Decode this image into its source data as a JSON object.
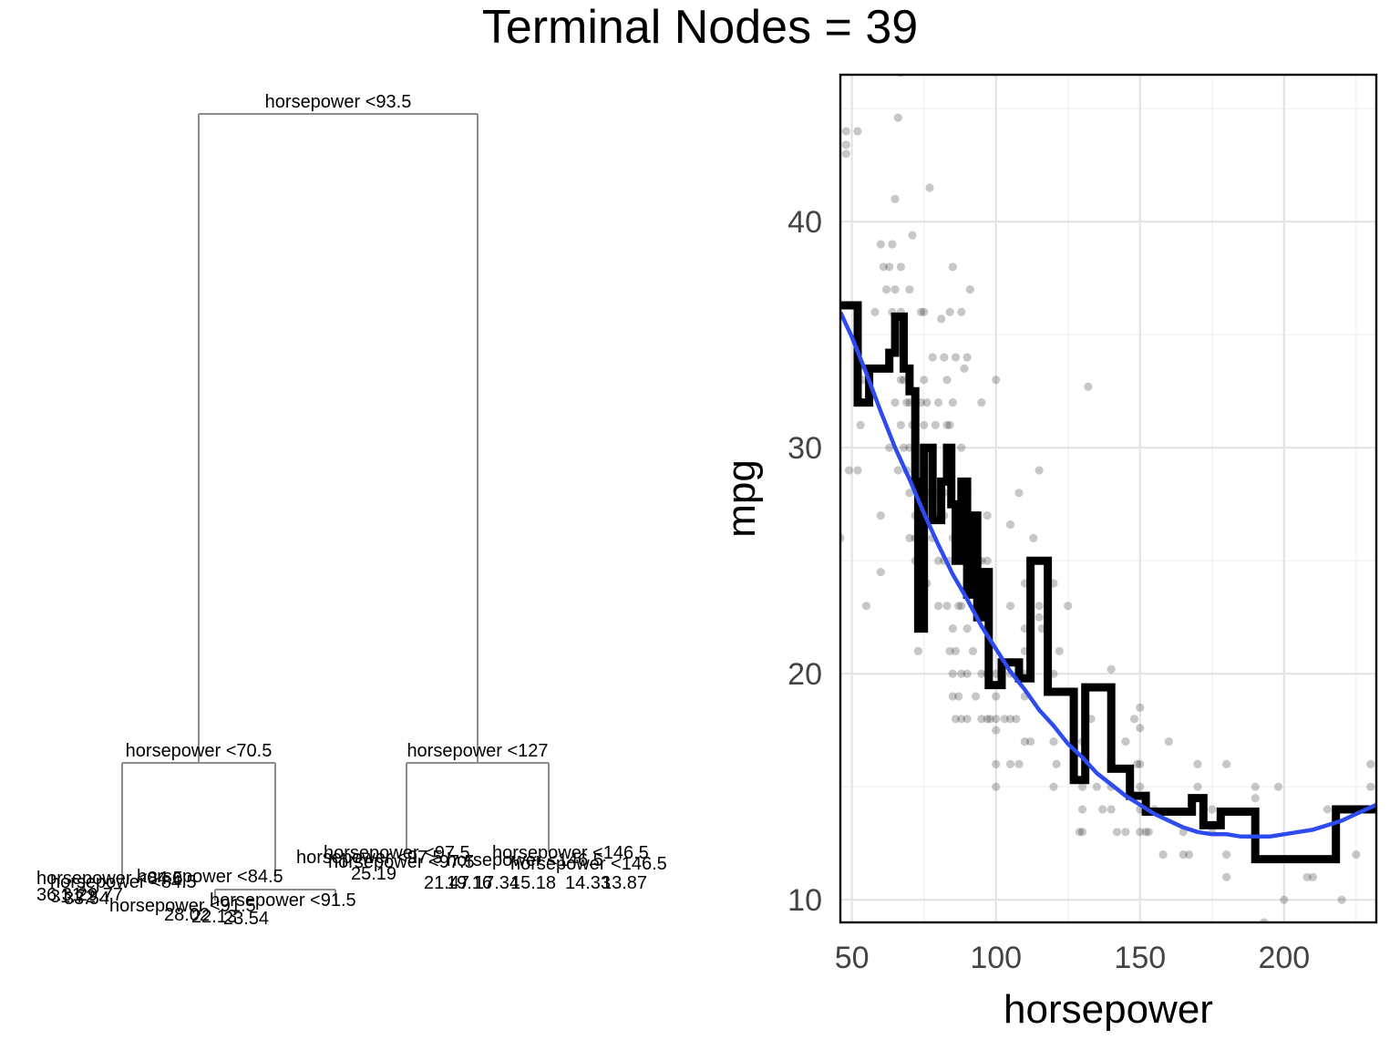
{
  "title": "Terminal Nodes = 39",
  "chart_data": [
    {
      "type": "tree",
      "splits": [
        {
          "label": "horsepower <93.5"
        },
        {
          "label": "horsepower <70.5"
        },
        {
          "label": "horsepower <127"
        },
        {
          "label": "horsepower <84.5"
        },
        {
          "label": "horsepower <97.5"
        },
        {
          "label": "horsepower <146.5"
        },
        {
          "label": "horsepower <91.5"
        }
      ],
      "leaf_labels": [
        "36.31",
        "31.72",
        "33.54",
        "29.77",
        "28.02",
        "22.13",
        "23.54",
        "25.19",
        "21.47",
        "19.16",
        "17.34",
        "15.18",
        "14.33",
        "13.87"
      ]
    },
    {
      "type": "scatter",
      "xlabel": "horsepower",
      "ylabel": "mpg",
      "xlim": [
        46,
        232
      ],
      "ylim": [
        9,
        46.5
      ],
      "xticks": [
        50,
        100,
        150,
        200
      ],
      "yticks": [
        10,
        20,
        30,
        40
      ],
      "grid": true,
      "colors": {
        "points": "#000000",
        "step": "#000000",
        "smooth": "#2e4bf0"
      },
      "points": [
        [
          46,
          26
        ],
        [
          48,
          44
        ],
        [
          48,
          43
        ],
        [
          48,
          43.4
        ],
        [
          52,
          44
        ],
        [
          49,
          29
        ],
        [
          52,
          29
        ],
        [
          53,
          31
        ],
        [
          54,
          33
        ],
        [
          55,
          23
        ],
        [
          58,
          36
        ],
        [
          60,
          39
        ],
        [
          60,
          27
        ],
        [
          60,
          24.5
        ],
        [
          61,
          38
        ],
        [
          62,
          37
        ],
        [
          63,
          38
        ],
        [
          63,
          30
        ],
        [
          64,
          39
        ],
        [
          64,
          36
        ],
        [
          65,
          37
        ],
        [
          65,
          35
        ],
        [
          65,
          32
        ],
        [
          65,
          41
        ],
        [
          66,
          44.6
        ],
        [
          66,
          29
        ],
        [
          67,
          38
        ],
        [
          67,
          36
        ],
        [
          67,
          33
        ],
        [
          67,
          31
        ],
        [
          67,
          46.6
        ],
        [
          68,
          35
        ],
        [
          68,
          30
        ],
        [
          68,
          33
        ],
        [
          69,
          32
        ],
        [
          69,
          29
        ],
        [
          70,
          37
        ],
        [
          70,
          32
        ],
        [
          70,
          30
        ],
        [
          70,
          26
        ],
        [
          70,
          28
        ],
        [
          71,
          39.4
        ],
        [
          71,
          31
        ],
        [
          72,
          32
        ],
        [
          72,
          27
        ],
        [
          72,
          26
        ],
        [
          72,
          25
        ],
        [
          73,
          21
        ],
        [
          74,
          36
        ],
        [
          74,
          28
        ],
        [
          74,
          26
        ],
        [
          74,
          32
        ],
        [
          75,
          24
        ],
        [
          75,
          29
        ],
        [
          75,
          31
        ],
        [
          75,
          33
        ],
        [
          75,
          36
        ],
        [
          75,
          25
        ],
        [
          76,
          32
        ],
        [
          76,
          28
        ],
        [
          76,
          24
        ],
        [
          77,
          41.5
        ],
        [
          78,
          34
        ],
        [
          78,
          29
        ],
        [
          78,
          26
        ],
        [
          79,
          31
        ],
        [
          79,
          27
        ],
        [
          80,
          25
        ],
        [
          80,
          23
        ],
        [
          80,
          32
        ],
        [
          80,
          28
        ],
        [
          81,
          35.7
        ],
        [
          82,
          34
        ],
        [
          82,
          27
        ],
        [
          82,
          25
        ],
        [
          82,
          28
        ],
        [
          83,
          33
        ],
        [
          83,
          29
        ],
        [
          83,
          31
        ],
        [
          83,
          23
        ],
        [
          84,
          36
        ],
        [
          84,
          31
        ],
        [
          84,
          25
        ],
        [
          84,
          21
        ],
        [
          85,
          38
        ],
        [
          85,
          32
        ],
        [
          85,
          26
        ],
        [
          85,
          22
        ],
        [
          85,
          20
        ],
        [
          85,
          19
        ],
        [
          86,
          34
        ],
        [
          86,
          21
        ],
        [
          86,
          18
        ],
        [
          87,
          23
        ],
        [
          87,
          19
        ],
        [
          88,
          36
        ],
        [
          88,
          30
        ],
        [
          88,
          27
        ],
        [
          88,
          25
        ],
        [
          88,
          20
        ],
        [
          88,
          18
        ],
        [
          88,
          23
        ],
        [
          89,
          27
        ],
        [
          89,
          25
        ],
        [
          89,
          33.5
        ],
        [
          90,
          34
        ],
        [
          90,
          26
        ],
        [
          90,
          28
        ],
        [
          90,
          22
        ],
        [
          90,
          20
        ],
        [
          90,
          18
        ],
        [
          91,
          37
        ],
        [
          92,
          26
        ],
        [
          92,
          24
        ],
        [
          92,
          21
        ],
        [
          93,
          24
        ],
        [
          93,
          19
        ],
        [
          94,
          25
        ],
        [
          95,
          32
        ],
        [
          95,
          25
        ],
        [
          95,
          24
        ],
        [
          95,
          20
        ],
        [
          95,
          18
        ],
        [
          97,
          27
        ],
        [
          97,
          25
        ],
        [
          97,
          22
        ],
        [
          97,
          20
        ],
        [
          97,
          18
        ],
        [
          98,
          18
        ],
        [
          100,
          33
        ],
        [
          100,
          19
        ],
        [
          100,
          17.5
        ],
        [
          100,
          16
        ],
        [
          100,
          15
        ],
        [
          100,
          18
        ],
        [
          100,
          20
        ],
        [
          103,
          18
        ],
        [
          105,
          18
        ],
        [
          105,
          16
        ],
        [
          105,
          20
        ],
        [
          105,
          26.6
        ],
        [
          105,
          23
        ],
        [
          107,
          18
        ],
        [
          108,
          28
        ],
        [
          108,
          16
        ],
        [
          110,
          22
        ],
        [
          110,
          20
        ],
        [
          110,
          17
        ],
        [
          110,
          19
        ],
        [
          110,
          24
        ],
        [
          110,
          21
        ],
        [
          112,
          21
        ],
        [
          112,
          25
        ],
        [
          112,
          17
        ],
        [
          113,
          26
        ],
        [
          115,
          22.5
        ],
        [
          115,
          23
        ],
        [
          115,
          29
        ],
        [
          116,
          22
        ],
        [
          120,
          17
        ],
        [
          120,
          15
        ],
        [
          120,
          20
        ],
        [
          120,
          24
        ],
        [
          121,
          16
        ],
        [
          122,
          21
        ],
        [
          125,
          23
        ],
        [
          129,
          13
        ],
        [
          130,
          14
        ],
        [
          130,
          15
        ],
        [
          130,
          13
        ],
        [
          130,
          17
        ],
        [
          132,
          32.7
        ],
        [
          133,
          18
        ],
        [
          135,
          15
        ],
        [
          137,
          14
        ],
        [
          140,
          14
        ],
        [
          140,
          15
        ],
        [
          140,
          16
        ],
        [
          140,
          20.2
        ],
        [
          142,
          13
        ],
        [
          145,
          13
        ],
        [
          145,
          17
        ],
        [
          148,
          18
        ],
        [
          149,
          16
        ],
        [
          150,
          13
        ],
        [
          150,
          14
        ],
        [
          150,
          15
        ],
        [
          150,
          16
        ],
        [
          150,
          17.6
        ],
        [
          150,
          18.5
        ],
        [
          152,
          13
        ],
        [
          153,
          13
        ],
        [
          155,
          14
        ],
        [
          158,
          12
        ],
        [
          160,
          17
        ],
        [
          165,
          13
        ],
        [
          165,
          12
        ],
        [
          167,
          12
        ],
        [
          170,
          16
        ],
        [
          170,
          15
        ],
        [
          175,
          14
        ],
        [
          175,
          13
        ],
        [
          180,
          16
        ],
        [
          180,
          12
        ],
        [
          180,
          11
        ],
        [
          190,
          15
        ],
        [
          190,
          14.5
        ],
        [
          193,
          9
        ],
        [
          198,
          15
        ],
        [
          200,
          10
        ],
        [
          208,
          11
        ],
        [
          210,
          11
        ],
        [
          215,
          14
        ],
        [
          220,
          10
        ],
        [
          225,
          12
        ],
        [
          230,
          16
        ],
        [
          230,
          15
        ]
      ],
      "step_fit": [
        [
          46,
          36.3
        ],
        [
          52,
          36.3
        ],
        [
          52,
          32
        ],
        [
          56,
          32
        ],
        [
          56,
          33.5
        ],
        [
          63,
          33.5
        ],
        [
          63,
          34.2
        ],
        [
          65,
          34.2
        ],
        [
          65,
          35.8
        ],
        [
          68,
          35.8
        ],
        [
          68,
          33.5
        ],
        [
          70,
          33.5
        ],
        [
          70,
          32.5
        ],
        [
          72,
          32.5
        ],
        [
          72,
          28.5
        ],
        [
          73,
          28.5
        ],
        [
          73,
          22
        ],
        [
          75,
          22
        ],
        [
          75,
          30
        ],
        [
          78,
          30
        ],
        [
          78,
          26.8
        ],
        [
          81,
          26.8
        ],
        [
          81,
          28.5
        ],
        [
          83,
          28.5
        ],
        [
          83,
          30
        ],
        [
          84.5,
          30
        ],
        [
          84.5,
          27.5
        ],
        [
          86,
          27.5
        ],
        [
          86,
          25
        ],
        [
          88,
          25
        ],
        [
          88,
          28.5
        ],
        [
          90,
          28.5
        ],
        [
          90,
          23.5
        ],
        [
          91.5,
          23.5
        ],
        [
          91.5,
          27
        ],
        [
          93.5,
          27
        ],
        [
          93.5,
          22.5
        ],
        [
          95,
          22.5
        ],
        [
          95,
          24.5
        ],
        [
          97.5,
          24.5
        ],
        [
          97.5,
          19.5
        ],
        [
          102,
          19.5
        ],
        [
          102,
          20.5
        ],
        [
          108,
          20.5
        ],
        [
          108,
          19.8
        ],
        [
          112,
          19.8
        ],
        [
          112,
          25
        ],
        [
          118,
          25
        ],
        [
          118,
          19.2
        ],
        [
          127,
          19.2
        ],
        [
          127,
          15.3
        ],
        [
          131,
          15.3
        ],
        [
          131,
          19.4
        ],
        [
          140,
          19.4
        ],
        [
          140,
          15.8
        ],
        [
          146.5,
          15.8
        ],
        [
          146.5,
          14.6
        ],
        [
          152,
          14.6
        ],
        [
          152,
          13.9
        ],
        [
          168,
          13.9
        ],
        [
          168,
          14.5
        ],
        [
          172,
          14.5
        ],
        [
          172,
          13.3
        ],
        [
          178,
          13.3
        ],
        [
          178,
          13.9
        ],
        [
          190,
          13.9
        ],
        [
          190,
          11.8
        ],
        [
          218,
          11.8
        ],
        [
          218,
          14
        ],
        [
          232,
          14
        ]
      ],
      "smooth_fit": [
        [
          46,
          36
        ],
        [
          50,
          34.9
        ],
        [
          55,
          33.3
        ],
        [
          60,
          31.6
        ],
        [
          65,
          30
        ],
        [
          70,
          28.6
        ],
        [
          75,
          27.1
        ],
        [
          80,
          25.7
        ],
        [
          85,
          24.4
        ],
        [
          90,
          23.3
        ],
        [
          95,
          22.1
        ],
        [
          100,
          21.1
        ],
        [
          105,
          20.1
        ],
        [
          110,
          19.3
        ],
        [
          115,
          18.4
        ],
        [
          120,
          17.7
        ],
        [
          125,
          16.9
        ],
        [
          130,
          16.3
        ],
        [
          135,
          15.6
        ],
        [
          140,
          15.1
        ],
        [
          145,
          14.6
        ],
        [
          150,
          14.2
        ],
        [
          155,
          13.8
        ],
        [
          160,
          13.5
        ],
        [
          165,
          13.2
        ],
        [
          170,
          13
        ],
        [
          175,
          12.9
        ],
        [
          180,
          12.9
        ],
        [
          185,
          12.8
        ],
        [
          190,
          12.8
        ],
        [
          195,
          12.8
        ],
        [
          200,
          12.9
        ],
        [
          205,
          13
        ],
        [
          210,
          13.1
        ],
        [
          215,
          13.3
        ],
        [
          220,
          13.5
        ],
        [
          225,
          13.8
        ],
        [
          232,
          14.2
        ]
      ]
    }
  ]
}
